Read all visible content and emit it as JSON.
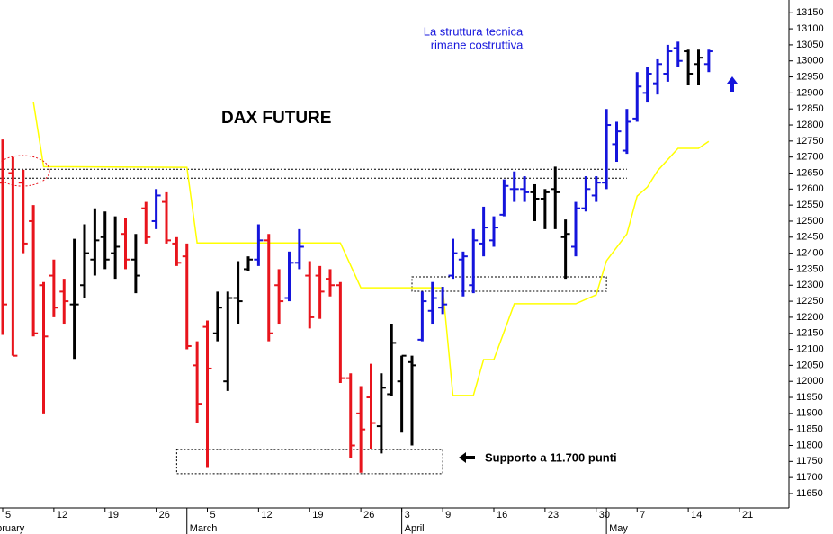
{
  "chart_data": {
    "type": "ohlc",
    "title": "DAX FUTURE",
    "annotations": [
      {
        "text": "La struttura tecnica"
      },
      {
        "text": "rimane costruttiva"
      },
      {
        "text": "Supporto a 11.700 punti"
      }
    ],
    "categories": [
      "5",
      null,
      null,
      null,
      null,
      "12",
      null,
      null,
      null,
      null,
      "19",
      null,
      null,
      null,
      null,
      "26",
      null,
      null,
      null,
      null,
      "5",
      null,
      null,
      null,
      null,
      "12",
      null,
      null,
      null,
      null,
      "19",
      null,
      null,
      null,
      null,
      "26",
      null,
      null,
      null,
      "3",
      null,
      null,
      null,
      "9",
      null,
      null,
      null,
      null,
      "16",
      null,
      null,
      null,
      null,
      "23",
      null,
      null,
      null,
      null,
      "30",
      null,
      null,
      null,
      "7",
      null,
      null,
      null,
      null,
      "14",
      null,
      null,
      null,
      null,
      "21"
    ],
    "months": [
      {
        "label": "February",
        "index": -2
      },
      {
        "label": "March",
        "index": 18
      },
      {
        "label": "April",
        "index": 39
      },
      {
        "label": "May",
        "index": 59
      }
    ],
    "open": [
      12620,
      12650,
      12620,
      12500,
      12300,
      12330,
      12280,
      12240,
      12300,
      12380,
      12450,
      12400,
      12460,
      12380,
      12540,
      12500,
      12560,
      12430,
      12390,
      12050,
      12170,
      12150,
      12000,
      12260,
      12350,
      12380,
      12440,
      12300,
      12260,
      12370,
      12330,
      12330,
      12320,
      12300,
      12010,
      11900,
      11950,
      11860,
      11960,
      12000,
      12060,
      12130,
      12220,
      12230,
      12330,
      12380,
      12300,
      12430,
      12440,
      12520,
      12600,
      12600,
      12590,
      12570,
      12600,
      12450,
      12420,
      12540,
      12580,
      12620,
      12740,
      12720,
      12820,
      12900,
      12930,
      12960,
      13040,
      13030,
      12990,
      12990,
      null,
      null,
      null
    ],
    "high": [
      12755,
      12700,
      12660,
      12550,
      12310,
      12380,
      12320,
      12445,
      12490,
      12540,
      12530,
      12515,
      12510,
      12460,
      12560,
      12600,
      12590,
      12450,
      12430,
      12125,
      12190,
      12280,
      12280,
      12375,
      12390,
      12490,
      12460,
      12350,
      12405,
      12475,
      12375,
      12360,
      12350,
      12310,
      12025,
      11985,
      12055,
      12025,
      12180,
      12080,
      12080,
      12280,
      12310,
      12295,
      12445,
      12405,
      12475,
      12545,
      12515,
      12630,
      12655,
      12640,
      12615,
      12600,
      12670,
      12505,
      12560,
      12640,
      12640,
      12850,
      12810,
      12850,
      12965,
      12980,
      13005,
      13050,
      13060,
      13035,
      13035,
      13035,
      null,
      null,
      null
    ],
    "low": [
      12145,
      12080,
      12400,
      12140,
      11900,
      12200,
      12180,
      12070,
      12260,
      12330,
      12350,
      12320,
      12350,
      12275,
      12430,
      12475,
      12430,
      12360,
      12100,
      11870,
      11730,
      12125,
      11970,
      12180,
      12345,
      12360,
      12125,
      12180,
      12250,
      12350,
      12165,
      12195,
      12265,
      11995,
      11760,
      11715,
      11790,
      11775,
      11955,
      11840,
      11800,
      12125,
      12180,
      12210,
      12320,
      12265,
      12275,
      12390,
      12420,
      12515,
      12560,
      12560,
      12500,
      12475,
      12475,
      12320,
      12390,
      12530,
      12560,
      12600,
      12685,
      12710,
      12810,
      12870,
      12895,
      12935,
      12980,
      12925,
      12925,
      12965,
      null,
      null,
      null
    ],
    "close": [
      12240,
      12080,
      12430,
      12150,
      12140,
      12230,
      12250,
      12240,
      12400,
      12440,
      12380,
      12420,
      12380,
      12330,
      12450,
      12580,
      12440,
      12370,
      12110,
      11930,
      12040,
      12230,
      12260,
      12250,
      12380,
      12440,
      12150,
      12250,
      12370,
      12420,
      12200,
      12280,
      12300,
      12010,
      11800,
      11850,
      11870,
      11980,
      12120,
      12080,
      12050,
      12250,
      12260,
      12240,
      12400,
      12390,
      12440,
      12480,
      12480,
      12610,
      12600,
      12590,
      12570,
      12590,
      12590,
      12460,
      12540,
      12600,
      12620,
      12800,
      12780,
      12810,
      12920,
      12960,
      12990,
      13030,
      13000,
      12960,
      13010,
      13030,
      null,
      null,
      null
    ],
    "bar_colors": [
      "#e8141c",
      "#e8141c",
      "#e8141c",
      "#e8141c",
      "#e8141c",
      "#e8141c",
      "#e8141c",
      "#000000",
      "#000000",
      "#000000",
      "#000000",
      "#000000",
      "#e8141c",
      "#000000",
      "#e8141c",
      "#1414dc",
      "#e8141c",
      "#e8141c",
      "#e8141c",
      "#e8141c",
      "#e8141c",
      "#000000",
      "#000000",
      "#000000",
      "#000000",
      "#1414dc",
      "#e8141c",
      "#e8141c",
      "#1414dc",
      "#1414dc",
      "#e8141c",
      "#e8141c",
      "#e8141c",
      "#e8141c",
      "#e8141c",
      "#e8141c",
      "#e8141c",
      "#000000",
      "#000000",
      "#000000",
      "#000000",
      "#1414dc",
      "#1414dc",
      "#1414dc",
      "#1414dc",
      "#1414dc",
      "#1414dc",
      "#1414dc",
      "#1414dc",
      "#1414dc",
      "#1414dc",
      "#1414dc",
      "#000000",
      "#000000",
      "#000000",
      "#000000",
      "#1414dc",
      "#1414dc",
      "#1414dc",
      "#1414dc",
      "#1414dc",
      "#1414dc",
      "#1414dc",
      "#1414dc",
      "#1414dc",
      "#1414dc",
      "#1414dc",
      "#000000",
      "#000000",
      "#1414dc",
      null,
      null,
      null
    ],
    "trend_line": {
      "color": "#ffff00",
      "x": [
        3,
        4,
        18,
        19,
        33,
        35,
        43,
        44,
        46,
        47,
        48,
        50,
        56,
        58,
        59,
        61,
        62,
        63,
        64,
        66,
        68,
        69
      ],
      "values": [
        12872,
        12670,
        12668,
        12432,
        12432,
        12292,
        12292,
        11956,
        11956,
        12068,
        12068,
        12242,
        12242,
        12270,
        12376,
        12460,
        12578,
        12606,
        12657,
        12727,
        12727,
        12749
      ]
    },
    "levels": [
      {
        "value": 12662,
        "start": 0,
        "end": 61
      },
      {
        "value": 12634,
        "start": 0,
        "end": 61
      }
    ],
    "zones": [
      {
        "low": 11712,
        "high": 11787,
        "start": 17,
        "end": 43
      },
      {
        "low": 12281,
        "high": 12326,
        "start": 40,
        "end": 59
      }
    ],
    "ylim": [
      11605,
      13190
    ],
    "yticks": [
      11650,
      11700,
      11750,
      11800,
      11850,
      11900,
      11950,
      12000,
      12050,
      12100,
      12150,
      12200,
      12250,
      12300,
      12350,
      12400,
      12450,
      12500,
      12550,
      12600,
      12650,
      12700,
      12750,
      12800,
      12850,
      12900,
      12950,
      13000,
      13050,
      13100,
      13150
    ]
  }
}
